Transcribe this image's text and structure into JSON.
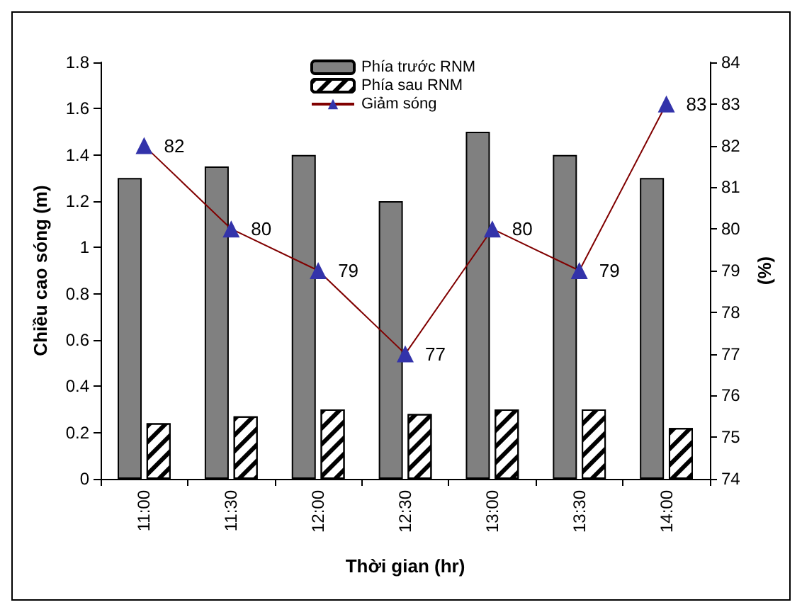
{
  "chart_data": {
    "type": "bar",
    "xlabel": "Thời gian (hr)",
    "ylabel": "Chiều cao sóng (m)",
    "y2label": "(%)",
    "categories": [
      "11:00",
      "11:30",
      "12:00",
      "12:30",
      "13:00",
      "13:30",
      "14:00"
    ],
    "series": [
      {
        "name": "Phía trước RNM",
        "color": "#808080",
        "values": [
          1.3,
          1.35,
          1.4,
          1.2,
          1.5,
          1.4,
          1.3
        ]
      },
      {
        "name": "Phía sau RNM",
        "color": "#ffffff",
        "values": [
          0.24,
          0.27,
          0.3,
          0.28,
          0.3,
          0.3,
          0.22
        ]
      },
      {
        "name": "Giảm sóng",
        "type": "line",
        "axis": "y2",
        "color": "#800000",
        "marker": "triangle",
        "data_labels": true,
        "values": [
          82,
          80,
          79,
          77,
          80,
          79,
          83
        ]
      }
    ],
    "ylim": [
      0,
      1.8
    ],
    "yticks": [
      0,
      0.2,
      0.4,
      0.6,
      0.8,
      1,
      1.2,
      1.4,
      1.6,
      1.8
    ],
    "y2lim": [
      74,
      84
    ],
    "y2ticks": [
      74,
      75,
      76,
      77,
      78,
      79,
      80,
      81,
      82,
      83,
      84
    ],
    "grid": false,
    "legend": "top"
  }
}
